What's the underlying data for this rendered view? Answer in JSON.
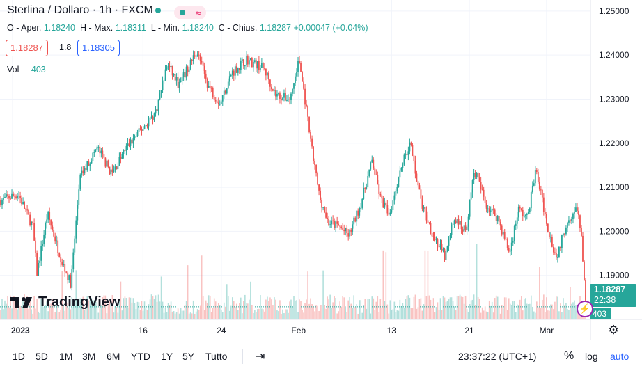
{
  "header": {
    "title": "Sterlina / Dollaro · 1h · FXCM",
    "badge_icon": "≈"
  },
  "ohlc": {
    "o_label": "O - Aper.",
    "o": "1.18240",
    "h_label": "H - Max.",
    "h": "1.18311",
    "l_label": "L - Min.",
    "l": "1.18240",
    "c_label": "C - Chius.",
    "c": "1.18287",
    "change": "+0.00047 (+0.04%)"
  },
  "quote": {
    "sell": "1.18287",
    "spread": "1.8",
    "buy": "1.18305"
  },
  "volume": {
    "label": "Vol",
    "value": "403"
  },
  "price_tag": {
    "price": "1.18287",
    "countdown": "22:38",
    "volume": "403"
  },
  "footer": {
    "ranges": [
      "1D",
      "5D",
      "1M",
      "3M",
      "6M",
      "YTD",
      "1Y",
      "5Y",
      "Tutto"
    ],
    "clock": "23:37:22 (UTC+1)",
    "percent": "%",
    "log": "log",
    "auto": "auto"
  },
  "branding": {
    "logo_text": "TradingView"
  },
  "colors": {
    "up": "#26a69a",
    "down": "#ef5350",
    "accent": "#2962ff"
  },
  "chart_data": {
    "type": "candlestick",
    "symbol": "GBPUSD",
    "interval": "1h",
    "y_ticks": [
      1.19,
      1.2,
      1.21,
      1.22,
      1.23,
      1.24,
      1.25
    ],
    "y_tick_labels": [
      "1.19000",
      "1.20000",
      "1.21000",
      "1.22000",
      "1.23000",
      "1.24000",
      "1.25000"
    ],
    "ylim": [
      1.18,
      1.2525
    ],
    "x_tick_labels": [
      "2023",
      "16",
      "24",
      "Feb",
      "13",
      "21",
      "Mar"
    ],
    "x_tick_index": [
      0,
      0.223,
      0.357,
      0.489,
      0.648,
      0.781,
      0.913
    ],
    "trend_points": [
      [
        0.0,
        1.207
      ],
      [
        0.03,
        1.2085
      ],
      [
        0.055,
        1.201
      ],
      [
        0.062,
        1.1905
      ],
      [
        0.08,
        1.204
      ],
      [
        0.105,
        1.193
      ],
      [
        0.12,
        1.188
      ],
      [
        0.135,
        1.212
      ],
      [
        0.165,
        1.219
      ],
      [
        0.19,
        1.213
      ],
      [
        0.215,
        1.219
      ],
      [
        0.24,
        1.223
      ],
      [
        0.265,
        1.227
      ],
      [
        0.285,
        1.238
      ],
      [
        0.305,
        1.233
      ],
      [
        0.335,
        1.241
      ],
      [
        0.355,
        1.233
      ],
      [
        0.375,
        1.229
      ],
      [
        0.395,
        1.236
      ],
      [
        0.42,
        1.239
      ],
      [
        0.45,
        1.237
      ],
      [
        0.47,
        1.231
      ],
      [
        0.495,
        1.23
      ],
      [
        0.51,
        1.239
      ],
      [
        0.52,
        1.23
      ],
      [
        0.53,
        1.22
      ],
      [
        0.545,
        1.208
      ],
      [
        0.56,
        1.202
      ],
      [
        0.58,
        1.201
      ],
      [
        0.595,
        1.199
      ],
      [
        0.615,
        1.206
      ],
      [
        0.635,
        1.216
      ],
      [
        0.65,
        1.207
      ],
      [
        0.665,
        1.204
      ],
      [
        0.685,
        1.215
      ],
      [
        0.7,
        1.22
      ],
      [
        0.72,
        1.206
      ],
      [
        0.74,
        1.199
      ],
      [
        0.76,
        1.194
      ],
      [
        0.775,
        1.203
      ],
      [
        0.795,
        1.2
      ],
      [
        0.81,
        1.214
      ],
      [
        0.83,
        1.206
      ],
      [
        0.85,
        1.203
      ],
      [
        0.87,
        1.195
      ],
      [
        0.885,
        1.205
      ],
      [
        0.9,
        1.203
      ],
      [
        0.915,
        1.214
      ],
      [
        0.935,
        1.201
      ],
      [
        0.95,
        1.194
      ],
      [
        0.97,
        1.203
      ],
      [
        0.985,
        1.205
      ],
      [
        0.993,
        1.199
      ],
      [
        1.0,
        1.183
      ]
    ],
    "last_price": 1.18287,
    "last_volume": 403
  }
}
